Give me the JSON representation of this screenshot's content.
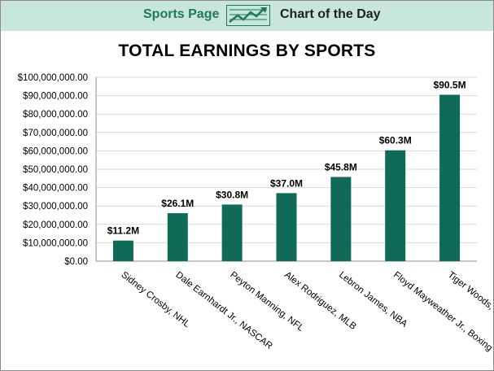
{
  "header": {
    "brand": "Sports Page",
    "subtitle": "Chart of the Day",
    "logo_icon": "trend-chart-icon"
  },
  "colors": {
    "header_bg": "#c8e6dc",
    "brand_text": "#1e7a5a",
    "bar": "#0f6b57",
    "grid": "#d9d9d9"
  },
  "chart_data": {
    "type": "bar",
    "title": "TOTAL EARNINGS BY SPORTS",
    "xlabel": "",
    "ylabel": "",
    "ylim": [
      0,
      100000000
    ],
    "grid": true,
    "legend": "none",
    "y_ticks": [
      {
        "value": 0,
        "label": "$0.00"
      },
      {
        "value": 10000000,
        "label": "$10,000,000.00"
      },
      {
        "value": 20000000,
        "label": "$20,000,000.00"
      },
      {
        "value": 30000000,
        "label": "$30,000,000.00"
      },
      {
        "value": 40000000,
        "label": "$40,000,000.00"
      },
      {
        "value": 50000000,
        "label": "$50,000,000.00"
      },
      {
        "value": 60000000,
        "label": "$60,000,000.00"
      },
      {
        "value": 70000000,
        "label": "$70,000,000.00"
      },
      {
        "value": 80000000,
        "label": "$80,000,000.00"
      },
      {
        "value": 90000000,
        "label": "$90,000,000.00"
      },
      {
        "value": 100000000,
        "label": "$100,000,000.00"
      }
    ],
    "categories": [
      "Sidney Crosby, NHL",
      "Dale Earnhardt Jr., NASCAR",
      "Peyton Manning, NFL",
      "Alex Rodriguez, MLB",
      "Lebron James, NBA",
      "Floyd Mayweather Jr., Boxing",
      "Tiger Woods, PGA"
    ],
    "values": [
      11200000,
      26100000,
      30800000,
      37000000,
      45800000,
      60300000,
      90500000
    ],
    "data_labels": [
      "$11.2M",
      "$26.1M",
      "$30.8M",
      "$37.0M",
      "$45.8M",
      "$60.3M",
      "$90.5M"
    ]
  }
}
